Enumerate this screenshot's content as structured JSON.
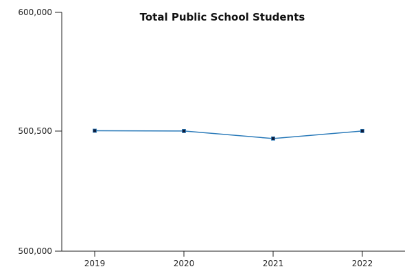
{
  "chart_data": {
    "type": "line",
    "title": "Total Public School Students",
    "xlabel": "",
    "ylabel": "",
    "categories": [
      "2019",
      "2020",
      "2021",
      "2022"
    ],
    "series": [
      {
        "values": [
          500792,
          500540,
          500469,
          500568
        ]
      }
    ],
    "y_ticks": [
      500000,
      500500,
      600000
    ],
    "y_tick_labels": [
      "500,000",
      "500,500",
      "600,000"
    ],
    "legend": "none",
    "grid": false,
    "colors": {
      "line": "#2a7ab9",
      "marker": "#0d1b3a"
    }
  }
}
